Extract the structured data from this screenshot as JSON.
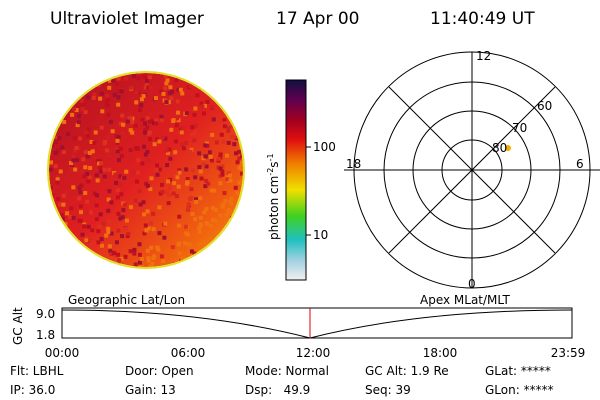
{
  "header": {
    "instrument": "Ultraviolet Imager",
    "date": "17 Apr 00",
    "time": "11:40:49 UT"
  },
  "colorbar": {
    "label": [
      "photon cm",
      "-2",
      "s",
      "-1"
    ],
    "ticks": [
      "100",
      "10"
    ]
  },
  "polar": {
    "mlt_labels": [
      "12",
      "18",
      "6",
      "0"
    ],
    "lat_labels": [
      "60",
      "70",
      "80"
    ]
  },
  "timeline": {
    "left_label": "Geographic Lat/Lon",
    "right_label": "Apex MLat/MLT",
    "y_title": "GC Alt",
    "y_labels": [
      "9.0",
      "1.8"
    ],
    "x_labels": [
      "00:00",
      "06:00",
      "12:00",
      "18:00",
      "23:59"
    ]
  },
  "status": {
    "rows": [
      [
        "Flt: LBHL",
        "Door: Open",
        "Mode: Normal",
        "GC Alt: 1.9 Re",
        "GLat: *****"
      ],
      [
        "IP: 36.0",
        "Gain: 13",
        "Dsp:   49.9",
        "Seq: 39",
        "GLon: *****"
      ]
    ]
  }
}
